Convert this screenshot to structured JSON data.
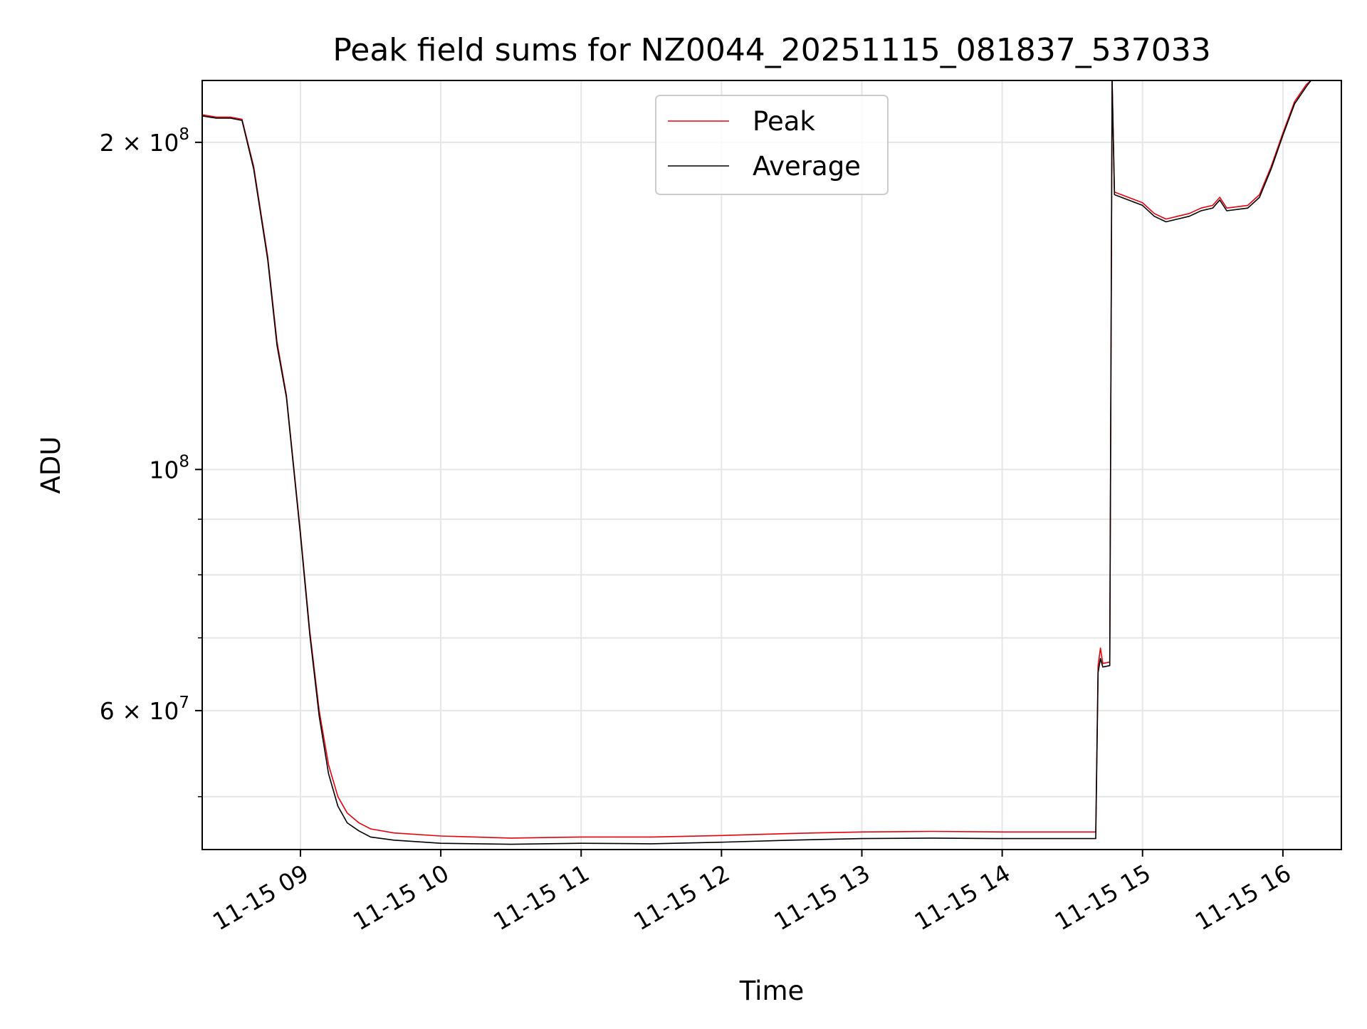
{
  "chart_data": {
    "type": "line",
    "title": "Peak field sums for NZ0044_20251115_081837_537033",
    "xlabel": "Time",
    "ylabel": "ADU",
    "y_scale": "log",
    "ylim": [
      44700000,
      228000000
    ],
    "xlim": [
      "2025-11-15T08:18",
      "2025-11-15T16:25"
    ],
    "x_ticks": [
      {
        "t": "2025-11-15T09:00",
        "label": "11-15 09"
      },
      {
        "t": "2025-11-15T10:00",
        "label": "11-15 10"
      },
      {
        "t": "2025-11-15T11:00",
        "label": "11-15 11"
      },
      {
        "t": "2025-11-15T12:00",
        "label": "11-15 12"
      },
      {
        "t": "2025-11-15T13:00",
        "label": "11-15 13"
      },
      {
        "t": "2025-11-15T14:00",
        "label": "11-15 14"
      },
      {
        "t": "2025-11-15T15:00",
        "label": "11-15 15"
      },
      {
        "t": "2025-11-15T16:00",
        "label": "11-15 16"
      }
    ],
    "y_major_ticks": [
      {
        "value": 60000000,
        "base": "6 × 10",
        "exp": "7"
      },
      {
        "value": 100000000,
        "base": "10",
        "exp": "8"
      },
      {
        "value": 200000000,
        "base": "2 × 10",
        "exp": "8"
      }
    ],
    "y_minor_ticks": [
      50000000,
      70000000,
      80000000,
      90000000
    ],
    "grid": true,
    "legend": {
      "position": "top-center",
      "entries": [
        {
          "name": "Peak",
          "color": "#e8000b"
        },
        {
          "name": "Average",
          "color": "#000000"
        }
      ]
    },
    "series": [
      {
        "name": "Peak",
        "color": "#e8000b",
        "points": [
          [
            "2025-11-15T08:18",
            212000000
          ],
          [
            "2025-11-15T08:24",
            211000000
          ],
          [
            "2025-11-15T08:30",
            211000000
          ],
          [
            "2025-11-15T08:35",
            210000000
          ],
          [
            "2025-11-15T08:40",
            190000000
          ],
          [
            "2025-11-15T08:46",
            157000000
          ],
          [
            "2025-11-15T08:50",
            131000000
          ],
          [
            "2025-11-15T08:54",
            117000000
          ],
          [
            "2025-11-15T09:00",
            87500000
          ],
          [
            "2025-11-15T09:04",
            71000000
          ],
          [
            "2025-11-15T09:08",
            60000000
          ],
          [
            "2025-11-15T09:12",
            53500000
          ],
          [
            "2025-11-15T09:16",
            50000000
          ],
          [
            "2025-11-15T09:20",
            48300000
          ],
          [
            "2025-11-15T09:25",
            47300000
          ],
          [
            "2025-11-15T09:30",
            46700000
          ],
          [
            "2025-11-15T09:40",
            46300000
          ],
          [
            "2025-11-15T10:00",
            46000000
          ],
          [
            "2025-11-15T10:30",
            45800000
          ],
          [
            "2025-11-15T11:00",
            45900000
          ],
          [
            "2025-11-15T11:30",
            45900000
          ],
          [
            "2025-11-15T12:00",
            46050000
          ],
          [
            "2025-11-15T12:30",
            46250000
          ],
          [
            "2025-11-15T13:00",
            46400000
          ],
          [
            "2025-11-15T13:30",
            46450000
          ],
          [
            "2025-11-15T14:00",
            46400000
          ],
          [
            "2025-11-15T14:40",
            46400000
          ],
          [
            "2025-11-15T14:41",
            66000000
          ],
          [
            "2025-11-15T14:42",
            68500000
          ],
          [
            "2025-11-15T14:43",
            66300000
          ],
          [
            "2025-11-15T14:46",
            66500000
          ],
          [
            "2025-11-15T14:47",
            228000000
          ],
          [
            "2025-11-15T14:48",
            180000000
          ],
          [
            "2025-11-15T15:00",
            176000000
          ],
          [
            "2025-11-15T15:05",
            172000000
          ],
          [
            "2025-11-15T15:10",
            170000000
          ],
          [
            "2025-11-15T15:15",
            171000000
          ],
          [
            "2025-11-15T15:20",
            172000000
          ],
          [
            "2025-11-15T15:25",
            174000000
          ],
          [
            "2025-11-15T15:30",
            175000000
          ],
          [
            "2025-11-15T15:33",
            178000000
          ],
          [
            "2025-11-15T15:36",
            174000000
          ],
          [
            "2025-11-15T15:45",
            175000000
          ],
          [
            "2025-11-15T15:50",
            179000000
          ],
          [
            "2025-11-15T15:55",
            190000000
          ],
          [
            "2025-11-15T16:00",
            204000000
          ],
          [
            "2025-11-15T16:05",
            218000000
          ],
          [
            "2025-11-15T16:10",
            226000000
          ],
          [
            "2025-11-15T16:12",
            228000000
          ]
        ]
      },
      {
        "name": "Average",
        "color": "#000000",
        "points": [
          [
            "2025-11-15T08:18",
            211500000
          ],
          [
            "2025-11-15T08:24",
            210500000
          ],
          [
            "2025-11-15T08:30",
            210500000
          ],
          [
            "2025-11-15T08:35",
            209500000
          ],
          [
            "2025-11-15T08:40",
            189000000
          ],
          [
            "2025-11-15T08:46",
            156000000
          ],
          [
            "2025-11-15T08:50",
            130000000
          ],
          [
            "2025-11-15T08:54",
            116500000
          ],
          [
            "2025-11-15T09:00",
            87000000
          ],
          [
            "2025-11-15T09:04",
            70500000
          ],
          [
            "2025-11-15T09:08",
            59300000
          ],
          [
            "2025-11-15T09:12",
            52500000
          ],
          [
            "2025-11-15T09:16",
            49000000
          ],
          [
            "2025-11-15T09:20",
            47300000
          ],
          [
            "2025-11-15T09:25",
            46500000
          ],
          [
            "2025-11-15T09:30",
            45900000
          ],
          [
            "2025-11-15T09:40",
            45600000
          ],
          [
            "2025-11-15T10:00",
            45300000
          ],
          [
            "2025-11-15T10:30",
            45200000
          ],
          [
            "2025-11-15T11:00",
            45300000
          ],
          [
            "2025-11-15T11:30",
            45250000
          ],
          [
            "2025-11-15T12:00",
            45400000
          ],
          [
            "2025-11-15T12:30",
            45600000
          ],
          [
            "2025-11-15T13:00",
            45750000
          ],
          [
            "2025-11-15T13:30",
            45800000
          ],
          [
            "2025-11-15T14:00",
            45750000
          ],
          [
            "2025-11-15T14:40",
            45750000
          ],
          [
            "2025-11-15T14:41",
            65000000
          ],
          [
            "2025-11-15T14:42",
            67000000
          ],
          [
            "2025-11-15T14:43",
            65800000
          ],
          [
            "2025-11-15T14:46",
            66000000
          ],
          [
            "2025-11-15T14:47",
            228000000
          ],
          [
            "2025-11-15T14:48",
            179000000
          ],
          [
            "2025-11-15T15:00",
            175000000
          ],
          [
            "2025-11-15T15:05",
            171000000
          ],
          [
            "2025-11-15T15:10",
            169000000
          ],
          [
            "2025-11-15T15:15",
            170000000
          ],
          [
            "2025-11-15T15:20",
            171000000
          ],
          [
            "2025-11-15T15:25",
            173000000
          ],
          [
            "2025-11-15T15:30",
            174000000
          ],
          [
            "2025-11-15T15:33",
            177000000
          ],
          [
            "2025-11-15T15:36",
            173000000
          ],
          [
            "2025-11-15T15:45",
            174000000
          ],
          [
            "2025-11-15T15:50",
            178000000
          ],
          [
            "2025-11-15T15:55",
            189000000
          ],
          [
            "2025-11-15T16:00",
            203000000
          ],
          [
            "2025-11-15T16:05",
            217000000
          ],
          [
            "2025-11-15T16:10",
            225000000
          ],
          [
            "2025-11-15T16:12",
            228000000
          ]
        ]
      }
    ]
  }
}
